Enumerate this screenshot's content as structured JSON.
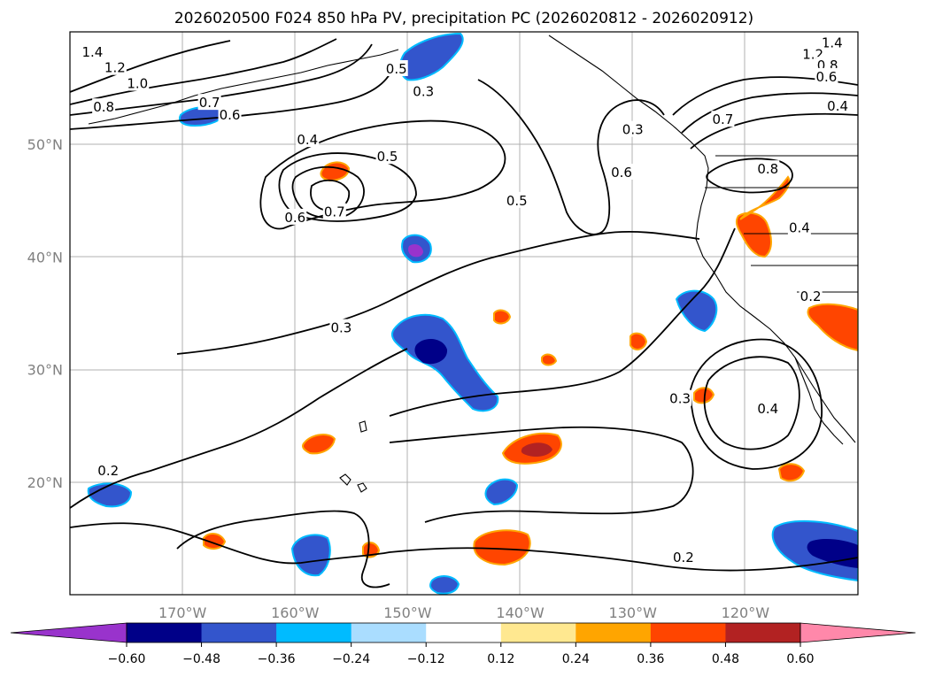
{
  "chart_data": {
    "type": "map_contour",
    "title": "2026020500 F024 850 hPa PV, precipitation PC (2026020812 - 2026020912)",
    "projection": "cylindrical",
    "extent": {
      "lon_min": -180,
      "lon_max": -110,
      "lat_min": 10,
      "lat_max": 60
    },
    "lat_ticks": [
      {
        "value": 20,
        "label": "20°N"
      },
      {
        "value": 30,
        "label": "30°N"
      },
      {
        "value": 40,
        "label": "40°N"
      },
      {
        "value": 50,
        "label": "50°N"
      }
    ],
    "lon_ticks": [
      {
        "value": -170,
        "label": "170°W"
      },
      {
        "value": -160,
        "label": "160°W"
      },
      {
        "value": -150,
        "label": "150°W"
      },
      {
        "value": -140,
        "label": "140°W"
      },
      {
        "value": -130,
        "label": "130°W"
      },
      {
        "value": -120,
        "label": "120°W"
      }
    ],
    "colorbar": {
      "extend": "both",
      "levels": [
        -0.6,
        -0.48,
        -0.36,
        -0.24,
        -0.12,
        0.12,
        0.24,
        0.36,
        0.48,
        0.6
      ],
      "tick_labels": [
        "−0.60",
        "−0.48",
        "−0.36",
        "−0.24",
        "−0.12",
        "0.12",
        "0.24",
        "0.36",
        "0.48",
        "0.60"
      ],
      "colors": [
        "#9933cc",
        "#000088",
        "#3355cc",
        "#00bbff",
        "#aaddff",
        "#ffffff",
        "#ffe890",
        "#ffa500",
        "#ff4500",
        "#b22222",
        "#ff88aa"
      ]
    },
    "pv_contour_labels": [
      {
        "text": "1.4",
        "lon": -178.0,
        "lat": 58.2
      },
      {
        "text": "1.2",
        "lon": -176.0,
        "lat": 56.8
      },
      {
        "text": "1.0",
        "lon": -174.0,
        "lat": 55.4
      },
      {
        "text": "0.8",
        "lon": -177.0,
        "lat": 53.3
      },
      {
        "text": "0.7",
        "lon": -167.6,
        "lat": 53.7
      },
      {
        "text": "0.6",
        "lon": -165.8,
        "lat": 52.6
      },
      {
        "text": "0.4",
        "lon": -158.9,
        "lat": 50.4
      },
      {
        "text": "0.5",
        "lon": -151.8,
        "lat": 48.9
      },
      {
        "text": "0.3",
        "lon": -148.6,
        "lat": 54.7
      },
      {
        "text": "0.5",
        "lon": -151.0,
        "lat": 56.7
      },
      {
        "text": "0.6",
        "lon": -160.0,
        "lat": 43.5
      },
      {
        "text": "0.7",
        "lon": -156.5,
        "lat": 44.0
      },
      {
        "text": "0.5",
        "lon": -140.3,
        "lat": 45.0
      },
      {
        "text": "0.6",
        "lon": -131.0,
        "lat": 47.5
      },
      {
        "text": "0.3",
        "lon": -130.0,
        "lat": 51.3
      },
      {
        "text": "0.7",
        "lon": -122.0,
        "lat": 52.2
      },
      {
        "text": "0.8",
        "lon": -118.0,
        "lat": 47.8
      },
      {
        "text": "1.4",
        "lon": -112.3,
        "lat": 59.0
      },
      {
        "text": "1.2",
        "lon": -114.0,
        "lat": 58.0
      },
      {
        "text": "0.8",
        "lon": -112.7,
        "lat": 57.0
      },
      {
        "text": "0.6",
        "lon": -112.8,
        "lat": 56.0
      },
      {
        "text": "0.4",
        "lon": -111.8,
        "lat": 53.4
      },
      {
        "text": "0.4",
        "lon": -115.2,
        "lat": 42.6
      },
      {
        "text": "0.2",
        "lon": -114.2,
        "lat": 36.5
      },
      {
        "text": "0.3",
        "lon": -155.9,
        "lat": 33.7
      },
      {
        "text": "0.3",
        "lon": -125.8,
        "lat": 27.4
      },
      {
        "text": "0.4",
        "lon": -118.0,
        "lat": 26.5
      },
      {
        "text": "0.2",
        "lon": -176.6,
        "lat": 21.0
      },
      {
        "text": "0.2",
        "lon": -125.5,
        "lat": 13.3
      }
    ]
  }
}
